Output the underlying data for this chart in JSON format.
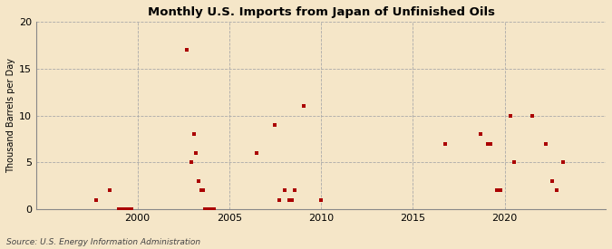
{
  "title": "Monthly U.S. Imports from Japan of Unfinished Oils",
  "ylabel": "Thousand Barrels per Day",
  "source": "Source: U.S. Energy Information Administration",
  "fig_bg_color": "#f5e6c8",
  "plot_bg_color": "#f5e6c8",
  "marker_color": "#aa0000",
  "marker_size": 8,
  "xlim": [
    1994.5,
    2025.5
  ],
  "ylim": [
    0,
    20
  ],
  "yticks": [
    0,
    5,
    10,
    15,
    20
  ],
  "xticks": [
    2000,
    2005,
    2010,
    2015,
    2020
  ],
  "data_points": [
    [
      1997.75,
      1
    ],
    [
      1998.5,
      2
    ],
    [
      1999.0,
      0
    ],
    [
      1999.08,
      0
    ],
    [
      1999.17,
      0
    ],
    [
      1999.25,
      0
    ],
    [
      1999.33,
      0
    ],
    [
      1999.42,
      0
    ],
    [
      1999.5,
      0
    ],
    [
      1999.58,
      0
    ],
    [
      1999.67,
      0
    ],
    [
      2002.67,
      17
    ],
    [
      2002.92,
      5
    ],
    [
      2003.08,
      8
    ],
    [
      2003.17,
      6
    ],
    [
      2003.33,
      3
    ],
    [
      2003.5,
      2
    ],
    [
      2003.58,
      2
    ],
    [
      2003.67,
      0
    ],
    [
      2003.75,
      0
    ],
    [
      2003.83,
      0
    ],
    [
      2003.92,
      0
    ],
    [
      2004.0,
      0
    ],
    [
      2004.08,
      0
    ],
    [
      2004.17,
      0
    ],
    [
      2006.5,
      6
    ],
    [
      2007.5,
      9
    ],
    [
      2007.75,
      1
    ],
    [
      2008.0,
      2
    ],
    [
      2008.25,
      1
    ],
    [
      2008.42,
      1
    ],
    [
      2008.58,
      2
    ],
    [
      2009.08,
      11
    ],
    [
      2010.0,
      1
    ],
    [
      2016.75,
      7
    ],
    [
      2018.67,
      8
    ],
    [
      2019.08,
      7
    ],
    [
      2019.25,
      7
    ],
    [
      2019.58,
      2
    ],
    [
      2019.75,
      2
    ],
    [
      2020.33,
      10
    ],
    [
      2020.5,
      5
    ],
    [
      2021.5,
      10
    ],
    [
      2022.25,
      7
    ],
    [
      2022.58,
      3
    ],
    [
      2022.83,
      2
    ],
    [
      2023.17,
      5
    ]
  ]
}
